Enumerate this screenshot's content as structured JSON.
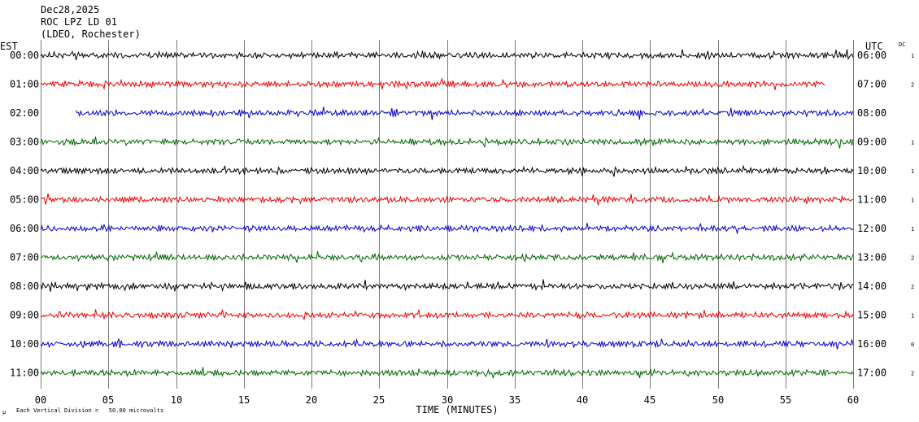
{
  "header": {
    "date": "Dec28,2025",
    "station": "ROC LPZ LD 01",
    "network": "(LDEO, Rochester)"
  },
  "left_tz": "EST",
  "right_tz": "UTC",
  "dc_header": "DC",
  "footer": {
    "scale_note": "Each Vertical Division =   50.00 microvolts",
    "corner_mark": "μ"
  },
  "chart_data": {
    "type": "line",
    "xlabel": "TIME (MINUTES)",
    "xlim": [
      0,
      60
    ],
    "x_ticks": [
      {
        "value": 0,
        "label": "00"
      },
      {
        "value": 5,
        "label": "05"
      },
      {
        "value": 10,
        "label": "10"
      },
      {
        "value": 15,
        "label": "15"
      },
      {
        "value": 20,
        "label": "20"
      },
      {
        "value": 25,
        "label": "25"
      },
      {
        "value": 30,
        "label": "30"
      },
      {
        "value": 35,
        "label": "35"
      },
      {
        "value": 40,
        "label": "40"
      },
      {
        "value": 45,
        "label": "45"
      },
      {
        "value": 50,
        "label": "50"
      },
      {
        "value": 55,
        "label": "55"
      },
      {
        "value": 60,
        "label": "60"
      }
    ],
    "grid": true,
    "rows": [
      {
        "local": "00:00",
        "utc": "06:00",
        "dc": "1",
        "color": "#000000",
        "start_min": 0.0,
        "end_min": 60.0
      },
      {
        "local": "01:00",
        "utc": "07:00",
        "dc": "2",
        "color": "#ee0000",
        "start_min": 0.0,
        "end_min": 58.0
      },
      {
        "local": "02:00",
        "utc": "08:00",
        "dc": "",
        "color": "#0000cc",
        "start_min": 2.6,
        "end_min": 60.0
      },
      {
        "local": "03:00",
        "utc": "09:00",
        "dc": "1",
        "color": "#006600",
        "start_min": 0.0,
        "end_min": 60.0
      },
      {
        "local": "04:00",
        "utc": "10:00",
        "dc": "1",
        "color": "#000000",
        "start_min": 0.0,
        "end_min": 60.0
      },
      {
        "local": "05:00",
        "utc": "11:00",
        "dc": "1",
        "color": "#ee0000",
        "start_min": 0.0,
        "end_min": 60.0
      },
      {
        "local": "06:00",
        "utc": "12:00",
        "dc": "1",
        "color": "#0000cc",
        "start_min": 0.0,
        "end_min": 60.0
      },
      {
        "local": "07:00",
        "utc": "13:00",
        "dc": "2",
        "color": "#006600",
        "start_min": 0.0,
        "end_min": 60.0
      },
      {
        "local": "08:00",
        "utc": "14:00",
        "dc": "2",
        "color": "#000000",
        "start_min": 0.0,
        "end_min": 60.0
      },
      {
        "local": "09:00",
        "utc": "15:00",
        "dc": "1",
        "color": "#ee0000",
        "start_min": 0.0,
        "end_min": 60.0
      },
      {
        "local": "10:00",
        "utc": "16:00",
        "dc": "0",
        "color": "#0000cc",
        "start_min": 0.0,
        "end_min": 60.0
      },
      {
        "local": "11:00",
        "utc": "17:00",
        "dc": "2",
        "color": "#006600",
        "start_min": 0.0,
        "end_min": 60.0
      }
    ]
  }
}
